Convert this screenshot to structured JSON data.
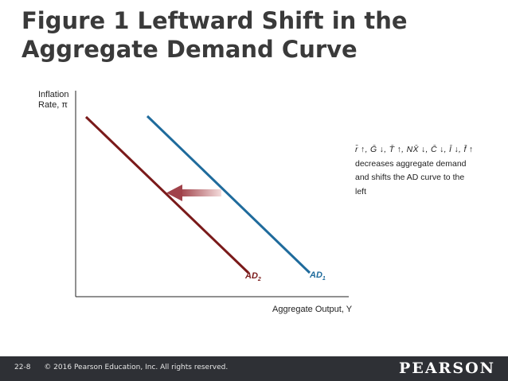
{
  "slide": {
    "title_line1": "Figure 1 Leftward Shift in the",
    "title_line2": "Aggregate Demand Curve"
  },
  "diagram": {
    "y_axis_label_line1": "Inflation",
    "y_axis_label_line2": "Rate, π",
    "x_axis_label": "Aggregate Output, Y",
    "curve_new_label": "AD",
    "curve_new_sub": "2",
    "curve_old_label": "AD",
    "curve_old_sub": "1",
    "annotation_formula": "r̄ ↑, Ḡ ↓, T̄ ↑, NX̄ ↓, C̄ ↓, Ī ↓, f̄ ↑",
    "annotation_line1": "decreases aggregate demand",
    "annotation_line2": "and shifts the AD curve to the",
    "annotation_line3": "left",
    "colors": {
      "curve_new": "#7a1a1a",
      "curve_old": "#1f6b9c",
      "arrow": "#b2666a"
    }
  },
  "footer": {
    "page_number": "22-8",
    "copyright": "© 2016 Pearson Education, Inc. All rights reserved.",
    "brand": "PEARSON"
  }
}
